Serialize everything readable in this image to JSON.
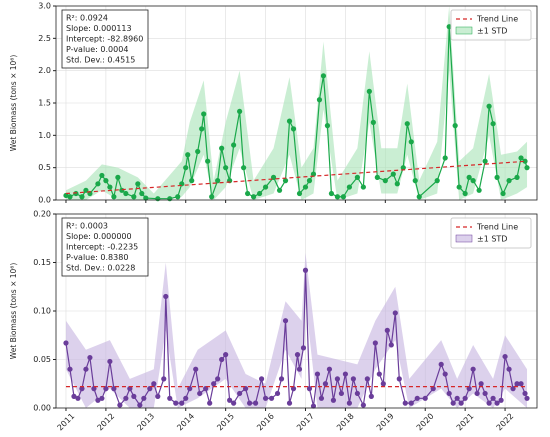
{
  "chart_data": [
    {
      "type": "line",
      "ylabel": "Wet Biomass (tons × 10⁶)",
      "color": "#1aa84a",
      "grid": true,
      "legend": "upper right",
      "xlim": [
        2010.75,
        2022.8
      ],
      "xticks": [
        2011,
        2012,
        2013,
        2014,
        2015,
        2016,
        2017,
        2018,
        2019,
        2020,
        2021,
        2022
      ],
      "ylim": [
        0,
        3
      ],
      "yticks": [
        {
          "value": 0,
          "label": "0.0"
        },
        {
          "value": 0.5,
          "label": "0.5"
        },
        {
          "value": 1,
          "label": "1.0"
        },
        {
          "value": 1.5,
          "label": "1.5"
        },
        {
          "value": 2,
          "label": "2.0"
        },
        {
          "value": 2.5,
          "label": "2.5"
        },
        {
          "value": 3,
          "label": "3.0"
        }
      ],
      "stats": [
        "R²: 0.0924",
        "Slope: 0.000113",
        "Intercept: -82.8960",
        "P-value: 0.0004",
        "Std. Dev.: 0.4515"
      ],
      "x": [
        2011.0,
        2011.1,
        2011.25,
        2011.4,
        2011.5,
        2011.6,
        2011.8,
        2011.9,
        2012.0,
        2012.1,
        2012.2,
        2012.3,
        2012.4,
        2012.5,
        2012.7,
        2012.8,
        2012.9,
        2013.0,
        2013.3,
        2013.6,
        2013.8,
        2013.9,
        2014.0,
        2014.05,
        2014.15,
        2014.3,
        2014.4,
        2014.45,
        2014.55,
        2014.65,
        2014.8,
        2014.9,
        2015.0,
        2015.1,
        2015.2,
        2015.35,
        2015.45,
        2015.55,
        2015.7,
        2015.85,
        2016.0,
        2016.2,
        2016.35,
        2016.5,
        2016.6,
        2016.7,
        2016.85,
        2017.0,
        2017.1,
        2017.2,
        2017.35,
        2017.45,
        2017.55,
        2017.65,
        2017.8,
        2017.95,
        2018.1,
        2018.3,
        2018.45,
        2018.6,
        2018.7,
        2018.8,
        2019.0,
        2019.2,
        2019.3,
        2019.45,
        2019.55,
        2019.65,
        2019.75,
        2019.85,
        2020.3,
        2020.5,
        2020.6,
        2020.75,
        2020.85,
        2021.0,
        2021.1,
        2021.2,
        2021.35,
        2021.5,
        2021.6,
        2021.7,
        2021.8,
        2021.95,
        2022.1,
        2022.3,
        2022.4,
        2022.5,
        2022.55
      ],
      "values": [
        0.07,
        0.05,
        0.1,
        0.05,
        0.15,
        0.1,
        0.25,
        0.38,
        0.3,
        0.2,
        0.05,
        0.35,
        0.15,
        0.1,
        0.05,
        0.25,
        0.1,
        0.03,
        0.02,
        0.02,
        0.05,
        0.25,
        0.5,
        0.7,
        0.3,
        0.75,
        1.1,
        1.33,
        0.6,
        0.05,
        0.3,
        0.8,
        0.5,
        0.3,
        0.85,
        1.37,
        0.5,
        0.1,
        0.05,
        0.1,
        0.2,
        0.35,
        0.15,
        0.3,
        1.22,
        1.1,
        0.1,
        0.2,
        0.3,
        0.4,
        1.55,
        1.92,
        1.15,
        0.1,
        0.05,
        0.05,
        0.2,
        0.35,
        0.2,
        1.68,
        1.2,
        0.35,
        0.3,
        0.4,
        0.25,
        0.5,
        1.18,
        0.9,
        0.3,
        0.05,
        0.3,
        0.65,
        2.68,
        1.15,
        0.2,
        0.1,
        0.35,
        0.3,
        0.15,
        0.6,
        1.45,
        1.18,
        0.35,
        0.1,
        0.3,
        0.35,
        0.65,
        0.6,
        0.5
      ],
      "band": {
        "name": "±1 STD",
        "color": "#a6e3b5",
        "x": [
          2011.0,
          2011.5,
          2011.9,
          2012.3,
          2012.8,
          2013.2,
          2013.9,
          2014.1,
          2014.45,
          2014.7,
          2015.0,
          2015.35,
          2015.7,
          2016.2,
          2016.6,
          2016.9,
          2017.2,
          2017.45,
          2017.8,
          2018.3,
          2018.6,
          2018.9,
          2019.3,
          2019.55,
          2019.85,
          2020.3,
          2020.6,
          2020.85,
          2021.2,
          2021.6,
          2021.9,
          2022.3,
          2022.55
        ],
        "lower": [
          0,
          0,
          0.15,
          0,
          0,
          0,
          0.05,
          0.2,
          0.7,
          0,
          0.2,
          0.8,
          0,
          0.1,
          0.7,
          0,
          0.1,
          1.4,
          0,
          0.1,
          1.2,
          0.1,
          0.1,
          0.7,
          0,
          0.1,
          2.0,
          0,
          0.1,
          1.0,
          0,
          0.1,
          0.2
        ],
        "upper": [
          0.15,
          0.3,
          0.55,
          0.5,
          0.35,
          0.1,
          0.6,
          1.2,
          1.85,
          0.3,
          1.2,
          2.0,
          0.3,
          0.8,
          1.9,
          0.5,
          0.8,
          2.45,
          0.3,
          0.8,
          2.3,
          0.8,
          0.8,
          1.8,
          0.3,
          0.9,
          3.0,
          0.6,
          0.8,
          1.95,
          0.7,
          0.75,
          0.9
        ]
      },
      "trend": {
        "name": "Trend Line",
        "color": "#d62728",
        "x": [
          2011.0,
          2022.55
        ],
        "values": [
          0.1,
          0.6
        ]
      }
    },
    {
      "type": "line",
      "ylabel": "Wet Biomass (tons × 10⁶)",
      "color": "#6a3d9a",
      "grid": true,
      "legend": "upper right",
      "xlim": [
        2010.75,
        2022.8
      ],
      "xticks": [
        2011,
        2012,
        2013,
        2014,
        2015,
        2016,
        2017,
        2018,
        2019,
        2020,
        2021,
        2022
      ],
      "ylim": [
        0,
        0.2
      ],
      "yticks": [
        {
          "value": 0,
          "label": "0.00"
        },
        {
          "value": 0.05,
          "label": "0.05"
        },
        {
          "value": 0.1,
          "label": "0.10"
        },
        {
          "value": 0.15,
          "label": "0.15"
        },
        {
          "value": 0.2,
          "label": "0.20"
        }
      ],
      "stats": [
        "R²: 0.0003",
        "Slope: 0.000000",
        "Intercept: -0.2235",
        "P-value: 0.8380",
        "Std. Dev.: 0.0228"
      ],
      "x": [
        2011.0,
        2011.1,
        2011.2,
        2011.3,
        2011.4,
        2011.5,
        2011.6,
        2011.7,
        2011.8,
        2011.9,
        2012.0,
        2012.1,
        2012.2,
        2012.35,
        2012.5,
        2012.6,
        2012.7,
        2012.85,
        2012.95,
        2013.1,
        2013.2,
        2013.3,
        2013.45,
        2013.5,
        2013.6,
        2013.75,
        2013.9,
        2014.0,
        2014.1,
        2014.25,
        2014.35,
        2014.5,
        2014.6,
        2014.7,
        2014.8,
        2014.9,
        2015.0,
        2015.1,
        2015.2,
        2015.35,
        2015.5,
        2015.6,
        2015.75,
        2015.9,
        2016.0,
        2016.15,
        2016.3,
        2016.4,
        2016.5,
        2016.6,
        2016.7,
        2016.8,
        2016.85,
        2016.95,
        2017.0,
        2017.1,
        2017.2,
        2017.3,
        2017.4,
        2017.5,
        2017.6,
        2017.7,
        2017.8,
        2017.9,
        2018.0,
        2018.1,
        2018.2,
        2018.3,
        2018.45,
        2018.55,
        2018.65,
        2018.75,
        2018.85,
        2018.95,
        2019.05,
        2019.15,
        2019.25,
        2019.35,
        2019.5,
        2019.65,
        2019.8,
        2020.0,
        2020.2,
        2020.4,
        2020.5,
        2020.6,
        2020.7,
        2020.8,
        2020.9,
        2021.0,
        2021.1,
        2021.2,
        2021.3,
        2021.4,
        2021.5,
        2021.6,
        2021.7,
        2021.8,
        2021.9,
        2022.0,
        2022.1,
        2022.2,
        2022.3,
        2022.4,
        2022.5,
        2022.55
      ],
      "values": [
        0.067,
        0.04,
        0.012,
        0.01,
        0.02,
        0.04,
        0.052,
        0.02,
        0.008,
        0.01,
        0.02,
        0.048,
        0.02,
        0.003,
        0.01,
        0.02,
        0.012,
        0.003,
        0.01,
        0.02,
        0.025,
        0.012,
        0.03,
        0.115,
        0.01,
        0.005,
        0.005,
        0.01,
        0.02,
        0.04,
        0.015,
        0.02,
        0.005,
        0.025,
        0.03,
        0.05,
        0.055,
        0.008,
        0.005,
        0.015,
        0.02,
        0.005,
        0.005,
        0.03,
        0.01,
        0.01,
        0.015,
        0.03,
        0.09,
        0.005,
        0.02,
        0.055,
        0.04,
        0.062,
        0.142,
        0.02,
        0.002,
        0.035,
        0.01,
        0.025,
        0.04,
        0.008,
        0.03,
        0.015,
        0.035,
        0.005,
        0.03,
        0.015,
        0.003,
        0.03,
        0.012,
        0.067,
        0.035,
        0.025,
        0.08,
        0.065,
        0.098,
        0.03,
        0.005,
        0.005,
        0.01,
        0.01,
        0.02,
        0.045,
        0.035,
        0.015,
        0.005,
        0.01,
        0.005,
        0.01,
        0.02,
        0.04,
        0.015,
        0.025,
        0.015,
        0.005,
        0.01,
        0.005,
        0.008,
        0.053,
        0.04,
        0.02,
        0.025,
        0.025,
        0.015,
        0.01
      ],
      "band": {
        "name": "±1 STD",
        "color": "#c5b3e0",
        "x": [
          2011.0,
          2011.5,
          2012.1,
          2012.6,
          2013.2,
          2013.5,
          2013.8,
          2014.3,
          2015.0,
          2015.5,
          2016.0,
          2016.5,
          2016.9,
          2017.0,
          2017.3,
          2017.8,
          2018.3,
          2018.75,
          2019.25,
          2019.6,
          2020.4,
          2020.8,
          2021.2,
          2021.7,
          2022.0,
          2022.55
        ],
        "lower": [
          0.04,
          0,
          0.02,
          0,
          0,
          0.08,
          0,
          0.01,
          0.03,
          0,
          0,
          0.06,
          0.03,
          0.11,
          0,
          0,
          0,
          0.04,
          0.07,
          0,
          0.02,
          0,
          0.015,
          0,
          0.02,
          0
        ],
        "upper": [
          0.09,
          0.06,
          0.07,
          0.03,
          0.04,
          0.15,
          0.02,
          0.06,
          0.08,
          0.035,
          0.025,
          0.11,
          0.09,
          0.16,
          0.055,
          0.05,
          0.045,
          0.09,
          0.125,
          0.03,
          0.07,
          0.03,
          0.065,
          0.03,
          0.075,
          0.04
        ]
      },
      "trend": {
        "name": "Trend Line",
        "color": "#d62728",
        "x": [
          2011.0,
          2022.55
        ],
        "values": [
          0.022,
          0.022
        ]
      }
    }
  ]
}
